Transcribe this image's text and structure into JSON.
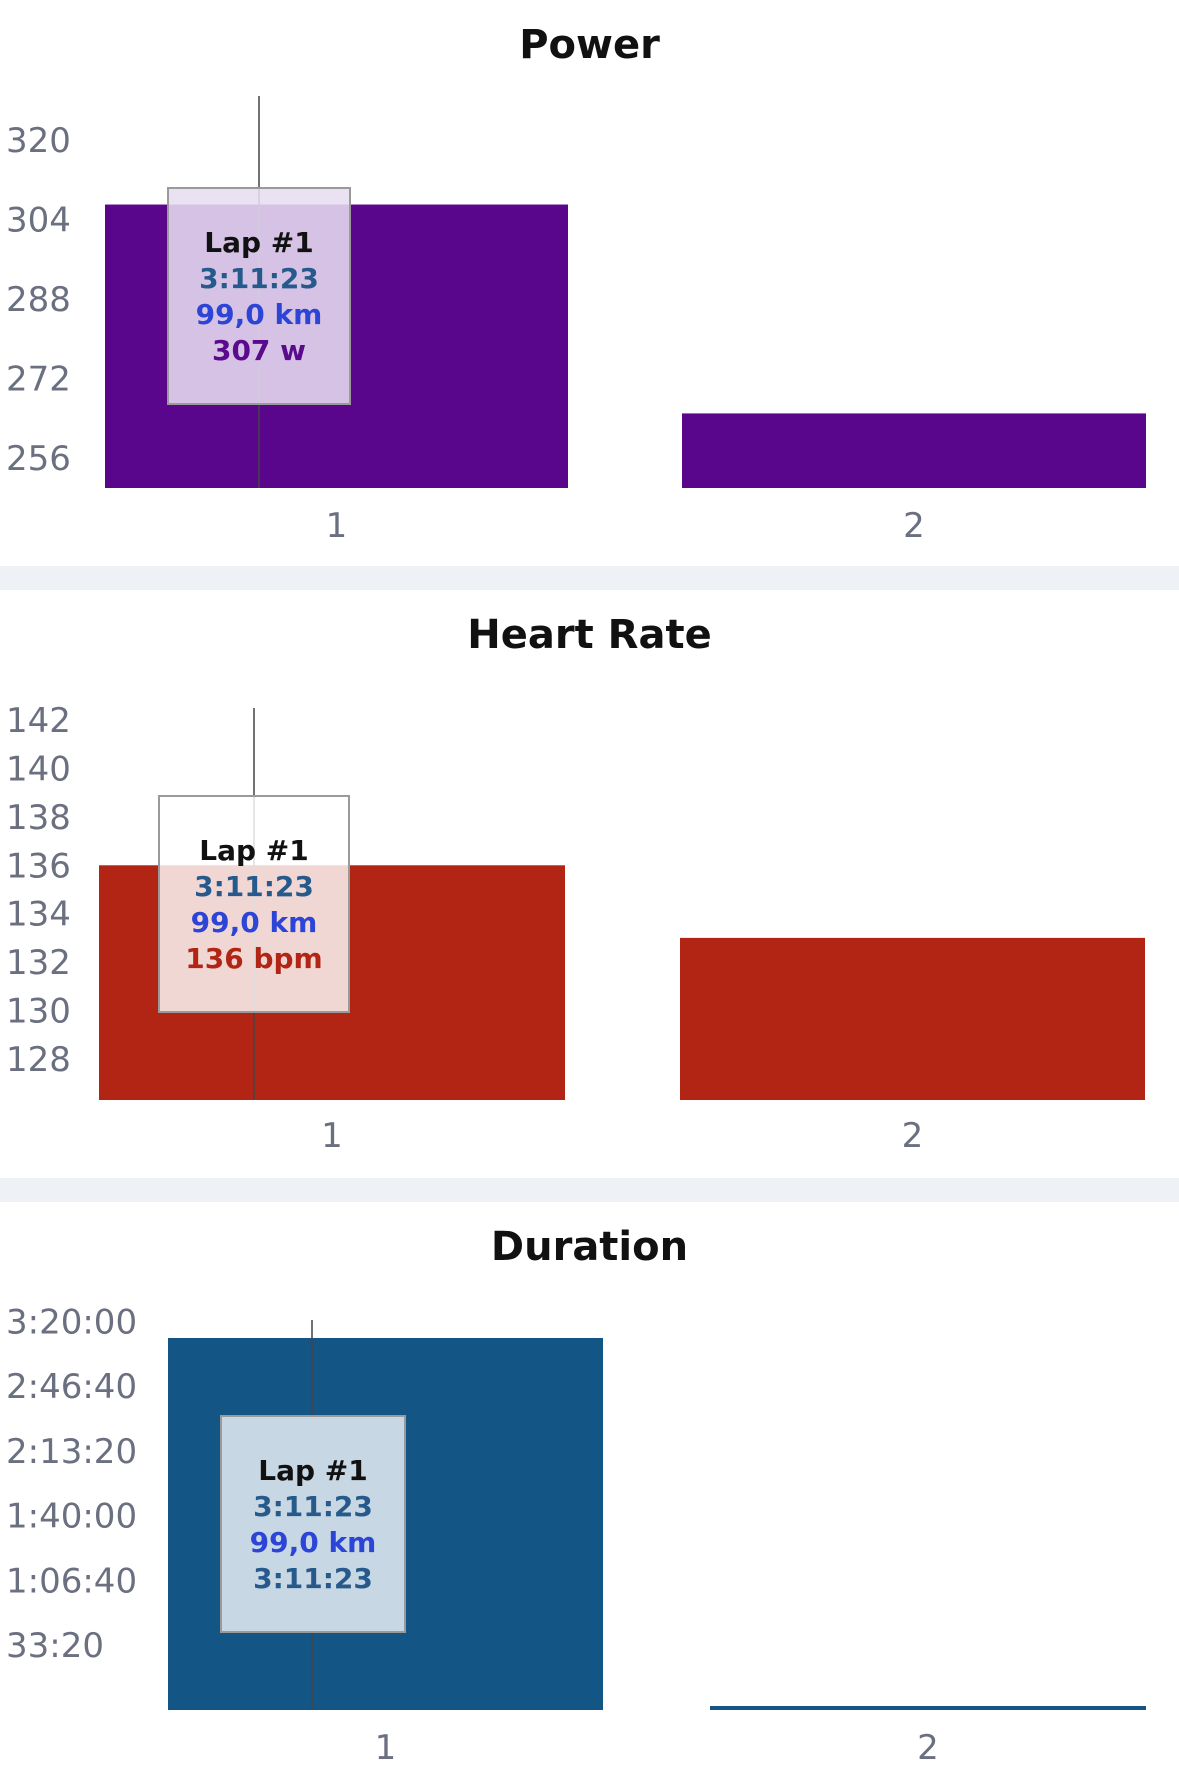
{
  "panels": [
    {
      "title": "Power",
      "tooltip": {
        "title": "Lap #1",
        "time": "3:11:23",
        "distance": "99,0 km",
        "value": "307 w",
        "value_color": "#5a0a8c"
      }
    },
    {
      "title": "Heart Rate",
      "tooltip": {
        "title": "Lap #1",
        "time": "3:11:23",
        "distance": "99,0 km",
        "value": "136 bpm",
        "value_color": "#b22413"
      }
    },
    {
      "title": "Duration",
      "tooltip": {
        "title": "Lap #1",
        "time": "3:11:23",
        "distance": "99,0 km",
        "value": "3:11:23",
        "value_color": "#275a8c"
      }
    }
  ],
  "chart_data": [
    {
      "type": "bar",
      "title": "Power",
      "categories": [
        "1",
        "2"
      ],
      "values": [
        307,
        265
      ],
      "unit": "w",
      "ytick_labels": [
        "320",
        "304",
        "288",
        "272",
        "256"
      ],
      "ytick_values": [
        320,
        304,
        288,
        272,
        256
      ],
      "ylim": [
        250,
        324
      ],
      "color": "#5a068c",
      "selected_category": "1"
    },
    {
      "type": "bar",
      "title": "Heart Rate",
      "categories": [
        "1",
        "2"
      ],
      "values": [
        136,
        133
      ],
      "unit": "bpm",
      "ytick_labels": [
        "142",
        "140",
        "138",
        "136",
        "134",
        "132",
        "130",
        "128"
      ],
      "ytick_values": [
        142,
        140,
        138,
        136,
        134,
        132,
        130,
        128
      ],
      "ylim": [
        126.3,
        142.5
      ],
      "color": "#b22413",
      "selected_category": "1"
    },
    {
      "type": "bar",
      "title": "Duration",
      "categories": [
        "1",
        "2"
      ],
      "values": [
        11483,
        60
      ],
      "value_labels": [
        "3:11:23",
        ""
      ],
      "unit": "h:mm:ss",
      "ytick_labels": [
        "3:20:00",
        "2:46:40",
        "2:13:20",
        "1:40:00",
        "1:06:40",
        "33:20"
      ],
      "ytick_values": [
        12000,
        10000,
        8000,
        6000,
        4000,
        2000
      ],
      "ylim": [
        0,
        11483
      ],
      "color": "#135686",
      "selected_category": "1"
    }
  ],
  "colors": {
    "separator": "#eef2f6",
    "tick_text": "#6b7080"
  }
}
